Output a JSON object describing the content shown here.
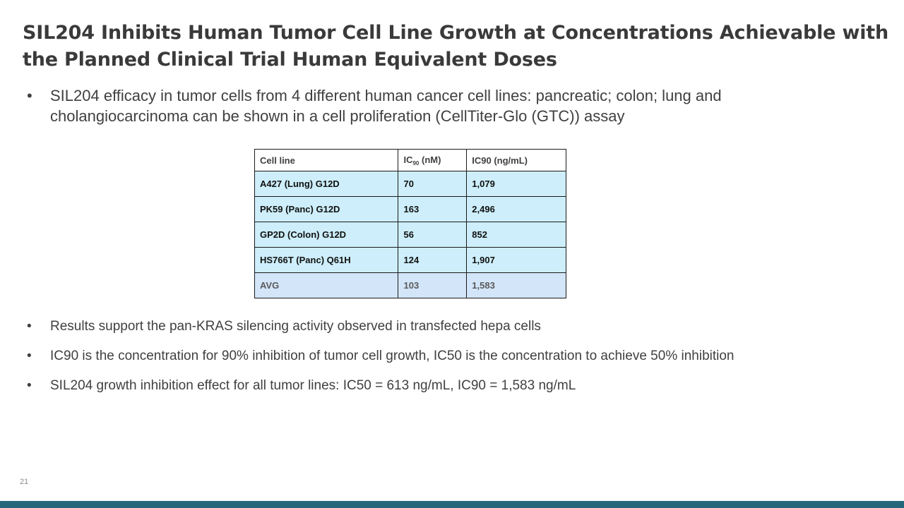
{
  "slide": {
    "title": "SIL204 Inhibits Human Tumor Cell Line Growth at Concentrations Achievable with the Planned Clinical Trial Human Equivalent Doses",
    "bullet_symbol": "•",
    "intro_bullets": [
      "SIL204 efficacy in tumor cells from 4 different human cancer cell lines: pancreatic;  colon; lung and cholangiocarcinoma can be shown in a cell proliferation (CellTiter-Glo (GTC)) assay"
    ],
    "table": {
      "headers": {
        "cell_line": "Cell line",
        "ic90_nm_prefix": "IC",
        "ic90_nm_subscript": "90",
        "ic90_nm_suffix": " (nM)",
        "ic90_ngml": "IC90 (ng/mL)"
      },
      "rows": [
        {
          "cell_line": "A427 (Lung) G12D",
          "ic90_nm": "70",
          "ic90_ngml": "1,079"
        },
        {
          "cell_line": "PK59 (Panc) G12D",
          "ic90_nm": "163",
          "ic90_ngml": "2,496"
        },
        {
          "cell_line": "GP2D (Colon) G12D",
          "ic90_nm": "56",
          "ic90_ngml": "852"
        },
        {
          "cell_line": "HS766T (Panc) Q61H",
          "ic90_nm": "124",
          "ic90_ngml": "1,907"
        },
        {
          "cell_line": "AVG",
          "ic90_nm": "103",
          "ic90_ngml": "1,583"
        }
      ]
    },
    "result_bullets": [
      "Results support the pan-KRAS silencing activity observed in transfected hepa cells",
      "IC90 is the concentration for 90% inhibition of tumor cell growth, IC50 is the concentration to achieve 50% inhibition",
      "SIL204 growth inhibition effect for all tumor lines: IC50 = 613 ng/mL,  IC90 = 1,583 ng/mL"
    ],
    "page_number": "21"
  },
  "colors": {
    "title_text": "#3a3a3a",
    "body_text": "#404040",
    "table_row_fill": "#cdeefa",
    "table_avg_fill": "#d3e5f9",
    "bottom_bar": "#23687a"
  }
}
